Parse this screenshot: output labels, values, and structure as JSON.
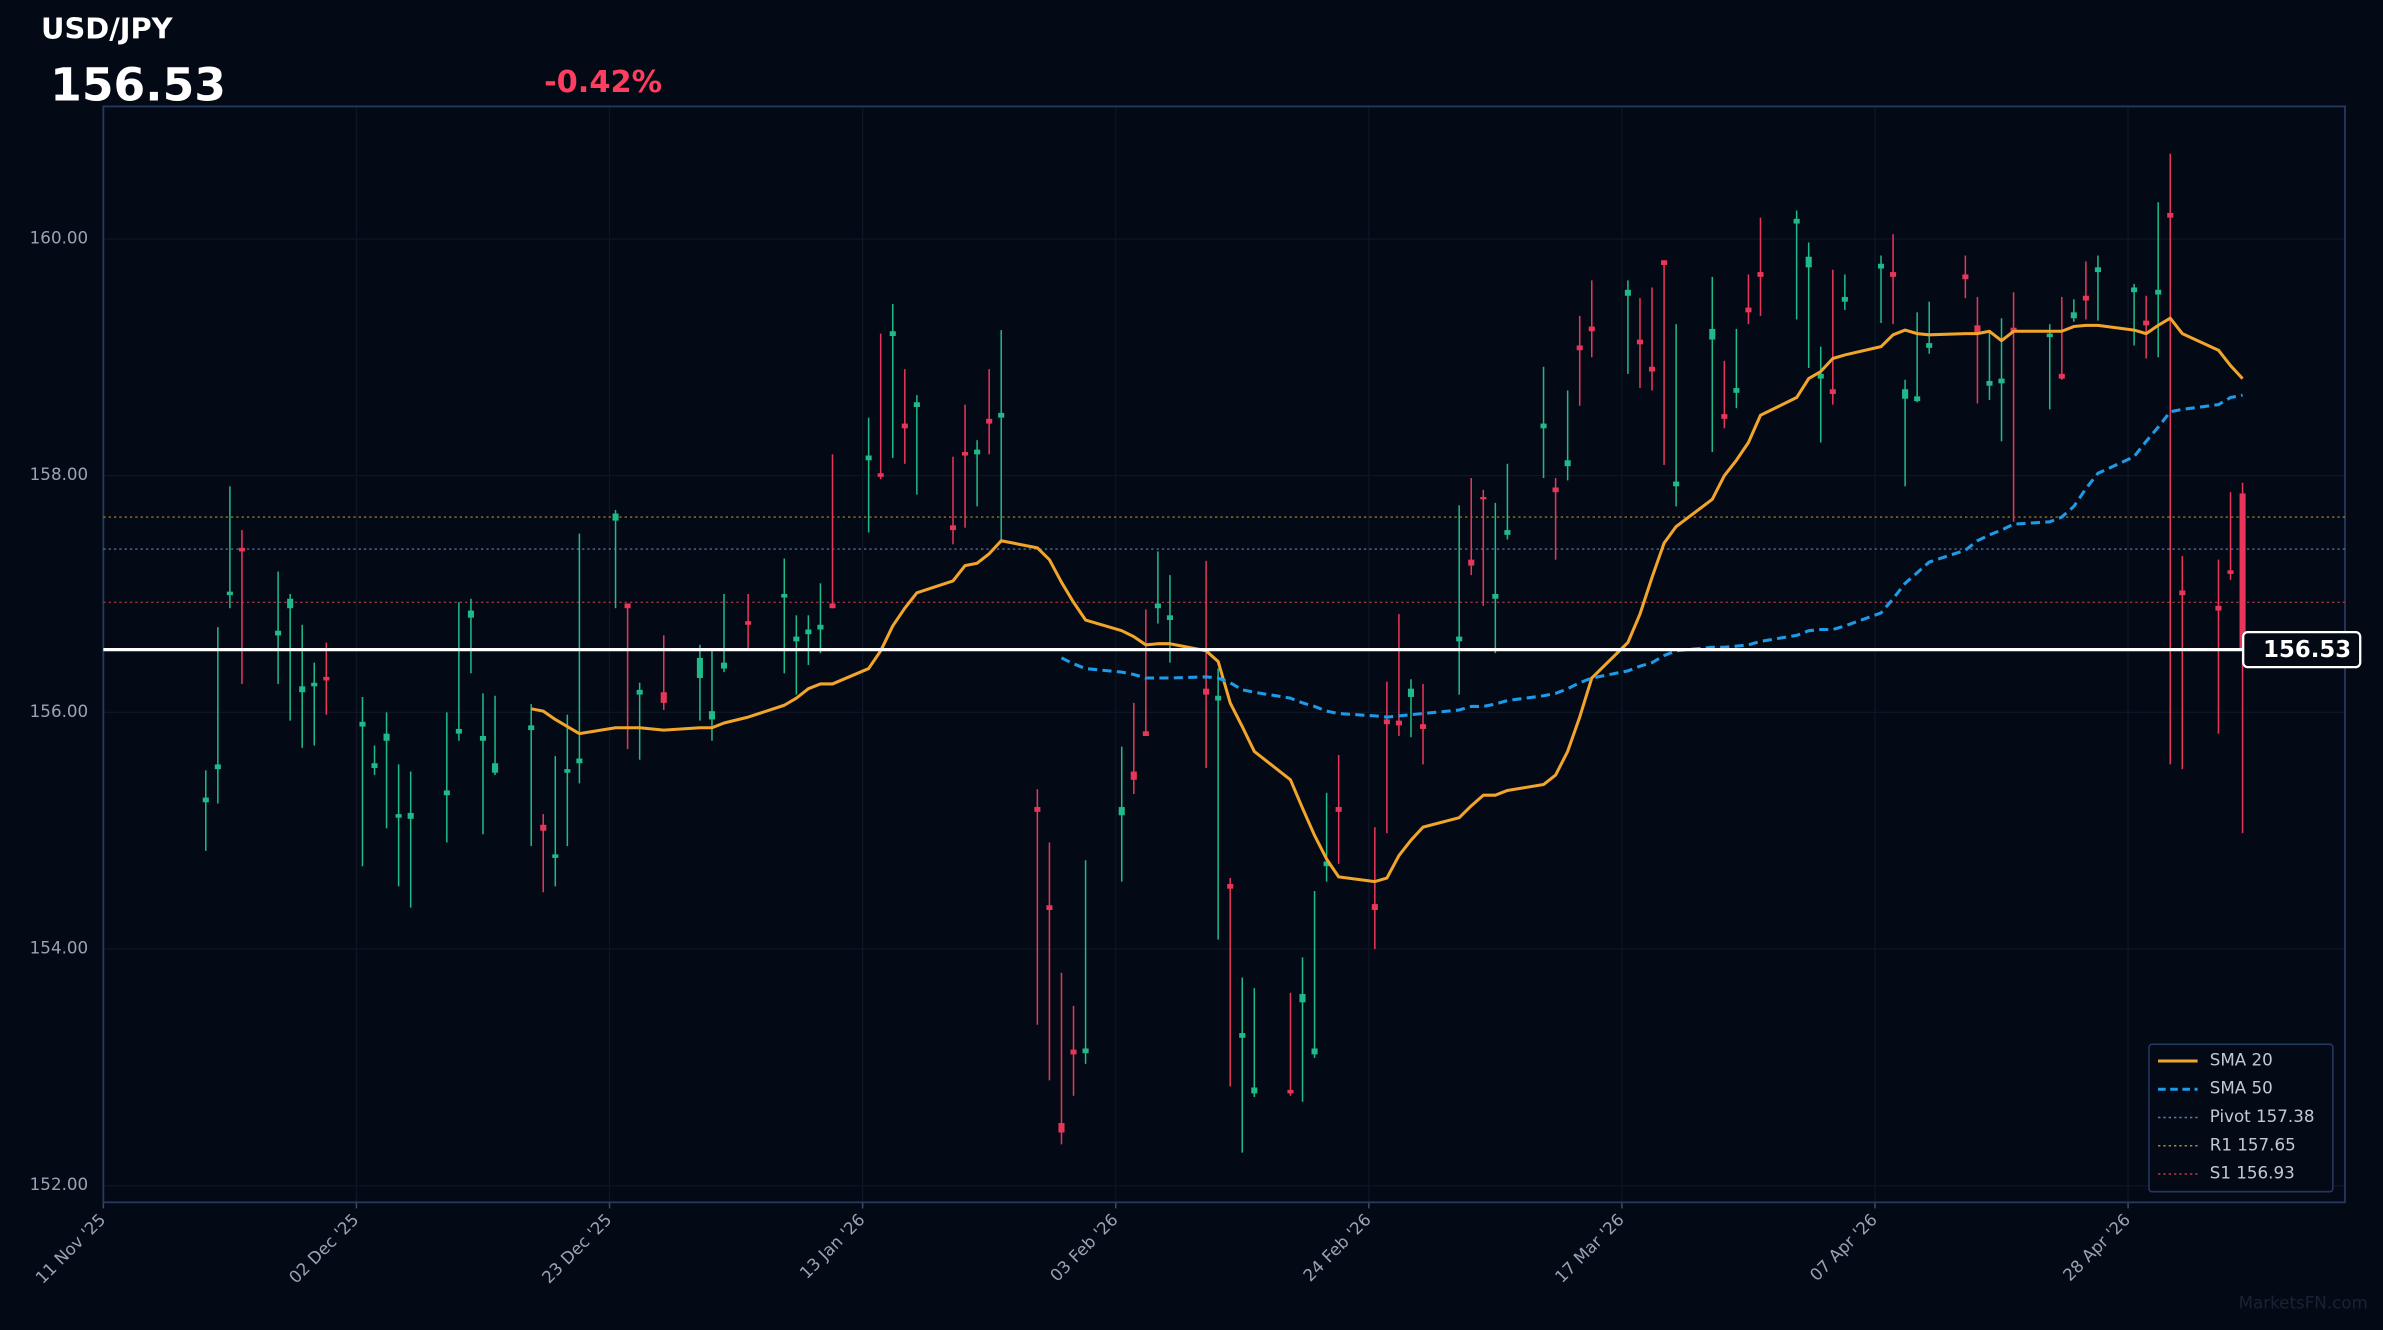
{
  "header": {
    "symbol": "USD/JPY",
    "change": "-0.42%"
  },
  "chart_data": {
    "type": "candlestick",
    "last_price": 156.53,
    "watermark": "MarketsFN.com",
    "colors": {
      "up": "#1fb98a",
      "down": "#e8365a",
      "last_price": "#ffffff",
      "change": "#ff3d5e"
    },
    "grid": true,
    "legend": "lower right",
    "xlim": [
      "2025-11-11",
      "2026-05-16"
    ],
    "xticks": [
      {
        "value": "2025-11-11",
        "label": "11 Nov '25"
      },
      {
        "value": "2025-12-02",
        "label": "02 Dec '25"
      },
      {
        "value": "2025-12-23",
        "label": "23 Dec '25"
      },
      {
        "value": "2026-01-13",
        "label": "13 Jan '26"
      },
      {
        "value": "2026-02-03",
        "label": "03 Feb '26"
      },
      {
        "value": "2026-02-24",
        "label": "24 Feb '26"
      },
      {
        "value": "2026-03-17",
        "label": "17 Mar '26"
      },
      {
        "value": "2026-04-07",
        "label": "07 Apr '26"
      },
      {
        "value": "2026-04-28",
        "label": "28 Apr '26"
      }
    ],
    "ylim": [
      151.86,
      161.12
    ],
    "yticks": [
      {
        "value": 152,
        "label": "152.00"
      },
      {
        "value": 154,
        "label": "154.00"
      },
      {
        "value": 156,
        "label": "156.00"
      },
      {
        "value": 158,
        "label": "158.00"
      },
      {
        "value": 160,
        "label": "160.00"
      }
    ],
    "x": [
      "2025-11-19",
      "2025-11-20",
      "2025-11-21",
      "2025-11-22",
      "2025-11-25",
      "2025-11-26",
      "2025-11-27",
      "2025-11-28",
      "2025-11-29",
      "2025-12-02",
      "2025-12-03",
      "2025-12-04",
      "2025-12-05",
      "2025-12-06",
      "2025-12-09",
      "2025-12-10",
      "2025-12-11",
      "2025-12-12",
      "2025-12-13",
      "2025-12-16",
      "2025-12-17",
      "2025-12-18",
      "2025-12-19",
      "2025-12-20",
      "2025-12-23",
      "2025-12-24",
      "2025-12-25",
      "2025-12-27",
      "2025-12-30",
      "2025-12-31",
      "2026-01-01",
      "2026-01-03",
      "2026-01-06",
      "2026-01-07",
      "2026-01-08",
      "2026-01-09",
      "2026-01-10",
      "2026-01-13",
      "2026-01-14",
      "2026-01-15",
      "2026-01-16",
      "2026-01-17",
      "2026-01-20",
      "2026-01-21",
      "2026-01-22",
      "2026-01-23",
      "2026-01-24",
      "2026-01-27",
      "2026-01-28",
      "2026-01-29",
      "2026-01-30",
      "2026-01-31",
      "2026-02-03",
      "2026-02-04",
      "2026-02-05",
      "2026-02-06",
      "2026-02-07",
      "2026-02-10",
      "2026-02-11",
      "2026-02-12",
      "2026-02-13",
      "2026-02-14",
      "2026-02-17",
      "2026-02-18",
      "2026-02-19",
      "2026-02-20",
      "2026-02-21",
      "2026-02-24",
      "2026-02-25",
      "2026-02-26",
      "2026-02-27",
      "2026-02-28",
      "2026-03-03",
      "2026-03-04",
      "2026-03-05",
      "2026-03-06",
      "2026-03-07",
      "2026-03-10",
      "2026-03-11",
      "2026-03-12",
      "2026-03-13",
      "2026-03-14",
      "2026-03-17",
      "2026-03-18",
      "2026-03-19",
      "2026-03-20",
      "2026-03-21",
      "2026-03-24",
      "2026-03-25",
      "2026-03-26",
      "2026-03-27",
      "2026-03-28",
      "2026-03-31",
      "2026-04-01",
      "2026-04-02",
      "2026-04-03",
      "2026-04-04",
      "2026-04-07",
      "2026-04-08",
      "2026-04-09",
      "2026-04-10",
      "2026-04-11",
      "2026-04-14",
      "2026-04-15",
      "2026-04-16",
      "2026-04-17",
      "2026-04-18",
      "2026-04-21",
      "2026-04-22",
      "2026-04-23",
      "2026-04-24",
      "2026-04-25",
      "2026-04-28",
      "2026-04-29",
      "2026-04-30",
      "2026-05-01",
      "2026-05-02",
      "2026-05-05",
      "2026-05-06",
      "2026-05-07"
    ],
    "open": [
      155.24,
      155.52,
      156.99,
      157.39,
      156.65,
      156.88,
      156.17,
      156.22,
      156.3,
      155.88,
      155.53,
      155.76,
      155.11,
      155.1,
      155.3,
      155.82,
      156.8,
      155.76,
      155.49,
      155.85,
      155.05,
      154.77,
      155.49,
      155.57,
      157.62,
      156.92,
      156.15,
      156.17,
      156.29,
      155.94,
      156.37,
      156.77,
      156.97,
      156.6,
      156.66,
      156.7,
      156.92,
      158.13,
      158.02,
      159.18,
      158.44,
      158.58,
      157.58,
      158.2,
      158.18,
      158.48,
      158.49,
      155.2,
      154.37,
      152.53,
      153.15,
      153.12,
      155.13,
      155.5,
      155.84,
      156.88,
      156.78,
      156.2,
      156.1,
      154.55,
      153.25,
      152.78,
      152.81,
      153.55,
      153.11,
      154.7,
      155.2,
      154.38,
      155.94,
      155.93,
      156.13,
      155.9,
      156.6,
      157.29,
      157.82,
      156.96,
      157.5,
      158.4,
      157.9,
      158.08,
      159.1,
      159.26,
      159.52,
      159.15,
      158.92,
      159.82,
      157.91,
      159.15,
      158.52,
      158.7,
      159.42,
      159.72,
      160.13,
      159.76,
      158.82,
      158.73,
      159.47,
      159.75,
      159.72,
      158.65,
      158.63,
      159.08,
      159.7,
      159.27,
      158.76,
      158.78,
      159.25,
      159.17,
      158.86,
      159.33,
      159.52,
      159.72,
      159.55,
      159.31,
      159.53,
      160.22,
      157.03,
      156.9,
      157.2,
      157.85
    ],
    "high": [
      155.51,
      156.72,
      157.91,
      157.54,
      157.19,
      157.0,
      156.74,
      156.42,
      156.59,
      156.13,
      155.72,
      156.0,
      155.56,
      155.5,
      156.0,
      156.93,
      156.96,
      156.16,
      156.14,
      156.07,
      155.14,
      155.63,
      155.98,
      157.51,
      157.71,
      156.92,
      156.25,
      156.65,
      156.57,
      156.53,
      157.0,
      157.0,
      157.3,
      156.82,
      156.82,
      157.09,
      158.18,
      158.49,
      159.2,
      159.45,
      158.9,
      158.68,
      158.16,
      158.6,
      158.3,
      158.9,
      159.23,
      155.35,
      154.9,
      153.8,
      153.52,
      154.75,
      155.71,
      156.08,
      156.87,
      157.36,
      157.16,
      157.28,
      156.37,
      154.6,
      153.76,
      153.67,
      153.63,
      153.93,
      154.49,
      155.32,
      155.64,
      155.03,
      156.26,
      156.83,
      156.28,
      156.24,
      157.75,
      157.98,
      157.88,
      157.77,
      158.1,
      158.92,
      157.98,
      158.72,
      159.35,
      159.65,
      159.65,
      159.5,
      159.59,
      159.82,
      159.28,
      159.68,
      158.97,
      159.24,
      159.7,
      160.18,
      160.24,
      159.97,
      159.09,
      159.74,
      159.7,
      159.86,
      160.04,
      158.81,
      159.38,
      159.47,
      159.86,
      159.51,
      159.22,
      159.33,
      159.55,
      159.28,
      159.51,
      159.49,
      159.81,
      159.86,
      159.62,
      159.52,
      160.31,
      160.72,
      157.32,
      157.29,
      157.86,
      157.94
    ],
    "low": [
      154.83,
      155.23,
      156.88,
      156.24,
      156.24,
      155.93,
      155.7,
      155.72,
      155.98,
      154.7,
      155.47,
      155.02,
      154.53,
      154.35,
      154.9,
      155.76,
      156.33,
      154.97,
      155.47,
      154.87,
      154.48,
      154.53,
      154.87,
      155.4,
      156.88,
      155.69,
      155.6,
      156.02,
      155.93,
      155.76,
      156.34,
      156.53,
      156.33,
      156.15,
      156.4,
      156.5,
      156.88,
      157.52,
      157.97,
      158.15,
      158.1,
      157.84,
      157.42,
      157.56,
      157.74,
      158.18,
      157.43,
      153.36,
      152.89,
      152.35,
      152.76,
      153.03,
      154.57,
      155.31,
      155.8,
      156.75,
      156.42,
      155.53,
      154.08,
      152.84,
      152.28,
      152.75,
      152.76,
      152.71,
      153.08,
      154.57,
      154.72,
      154.0,
      154.98,
      155.8,
      155.79,
      155.56,
      156.15,
      157.16,
      156.9,
      156.5,
      157.46,
      157.98,
      157.29,
      157.96,
      158.59,
      159.0,
      158.86,
      158.74,
      158.72,
      158.09,
      157.74,
      158.2,
      158.4,
      158.57,
      159.28,
      159.35,
      159.32,
      158.91,
      158.28,
      158.6,
      159.4,
      159.29,
      159.28,
      157.91,
      158.62,
      159.03,
      159.5,
      158.61,
      158.64,
      158.29,
      157.61,
      158.56,
      158.81,
      159.3,
      159.32,
      159.31,
      159.1,
      158.99,
      159.0,
      155.56,
      155.52,
      155.82,
      157.12,
      154.98
    ],
    "close": [
      155.28,
      155.56,
      157.02,
      157.36,
      156.69,
      156.96,
      156.22,
      156.25,
      156.27,
      155.92,
      155.57,
      155.82,
      155.14,
      155.15,
      155.34,
      155.86,
      156.86,
      155.8,
      155.57,
      155.89,
      155.0,
      154.8,
      155.52,
      155.61,
      157.68,
      156.88,
      156.19,
      156.08,
      156.46,
      156.01,
      156.42,
      156.74,
      157.0,
      156.64,
      156.7,
      156.74,
      156.88,
      158.17,
      157.99,
      159.22,
      158.4,
      158.62,
      157.54,
      158.17,
      158.22,
      158.44,
      158.53,
      155.16,
      154.33,
      152.45,
      153.11,
      153.16,
      155.2,
      155.43,
      155.8,
      156.92,
      156.82,
      156.15,
      156.14,
      154.51,
      153.29,
      152.83,
      152.78,
      153.62,
      153.16,
      154.74,
      155.16,
      154.33,
      155.9,
      155.89,
      156.2,
      155.86,
      156.64,
      157.24,
      157.8,
      157.0,
      157.54,
      158.44,
      157.86,
      158.13,
      159.06,
      159.22,
      159.57,
      159.11,
      158.88,
      159.78,
      157.95,
      159.24,
      158.48,
      158.74,
      159.38,
      159.68,
      160.17,
      159.85,
      158.86,
      158.69,
      159.51,
      159.79,
      159.68,
      158.73,
      158.67,
      159.12,
      159.66,
      159.21,
      158.8,
      158.82,
      159.21,
      159.2,
      158.82,
      159.38,
      159.48,
      159.76,
      159.59,
      159.27,
      159.57,
      160.18,
      156.99,
      156.86,
      157.17,
      156.53
    ],
    "series": [
      {
        "name": "SMA 20",
        "color": "#f2a52b",
        "style": "solid",
        "values": [
          null,
          null,
          null,
          null,
          null,
          null,
          null,
          null,
          null,
          null,
          null,
          null,
          null,
          null,
          null,
          null,
          null,
          null,
          null,
          156.03,
          156.01,
          155.94,
          155.88,
          155.82,
          155.87,
          155.87,
          155.87,
          155.85,
          155.87,
          155.87,
          155.91,
          155.96,
          156.06,
          156.12,
          156.2,
          156.24,
          156.24,
          156.37,
          156.52,
          156.73,
          156.88,
          157.01,
          157.11,
          157.24,
          157.26,
          157.34,
          157.45,
          157.39,
          157.29,
          157.1,
          156.93,
          156.78,
          156.69,
          156.64,
          156.57,
          156.58,
          156.58,
          156.52,
          156.43,
          156.08,
          155.88,
          155.67,
          155.43,
          155.19,
          154.96,
          154.76,
          154.61,
          154.57,
          154.6,
          154.79,
          154.92,
          155.03,
          155.11,
          155.21,
          155.3,
          155.3,
          155.34,
          155.39,
          155.47,
          155.67,
          155.96,
          156.29,
          156.59,
          156.83,
          157.14,
          157.43,
          157.57,
          157.8,
          158.0,
          158.13,
          158.28,
          158.51,
          158.66,
          158.82,
          158.88,
          158.99,
          159.02,
          159.09,
          159.19,
          159.23,
          159.2,
          159.19,
          159.2,
          159.2,
          159.22,
          159.14,
          159.22,
          159.22,
          159.22,
          159.26,
          159.27,
          159.27,
          159.23,
          159.2,
          159.27,
          159.33,
          159.2,
          159.06,
          158.93,
          158.82
        ]
      },
      {
        "name": "SMA 50",
        "color": "#1e9be8",
        "style": "dashed",
        "values": [
          null,
          null,
          null,
          null,
          null,
          null,
          null,
          null,
          null,
          null,
          null,
          null,
          null,
          null,
          null,
          null,
          null,
          null,
          null,
          null,
          null,
          null,
          null,
          null,
          null,
          null,
          null,
          null,
          null,
          null,
          null,
          null,
          null,
          null,
          null,
          null,
          null,
          null,
          null,
          null,
          null,
          null,
          null,
          null,
          null,
          null,
          null,
          null,
          null,
          156.46,
          156.41,
          156.37,
          156.34,
          156.32,
          156.29,
          156.29,
          156.29,
          156.3,
          156.29,
          156.25,
          156.19,
          156.17,
          156.12,
          156.08,
          156.05,
          156.01,
          155.99,
          155.97,
          155.96,
          155.97,
          155.98,
          155.99,
          156.02,
          156.05,
          156.05,
          156.07,
          156.1,
          156.14,
          156.16,
          156.2,
          156.25,
          156.29,
          156.35,
          156.39,
          156.42,
          156.48,
          156.52,
          156.55,
          156.55,
          156.56,
          156.57,
          156.6,
          156.65,
          156.69,
          156.7,
          156.7,
          156.73,
          156.84,
          156.96,
          157.09,
          157.18,
          157.27,
          157.37,
          157.45,
          157.5,
          157.54,
          157.59,
          157.61,
          157.65,
          157.74,
          157.89,
          158.02,
          158.16,
          158.29,
          158.41,
          158.54,
          158.56,
          158.6,
          158.66,
          158.68
        ]
      }
    ],
    "levels": [
      {
        "name": "Pivot 157.38",
        "value": 157.38,
        "color": "#5d7fb8"
      },
      {
        "name": "R1 157.65",
        "value": 157.65,
        "color": "#b8862b"
      },
      {
        "name": "S1 156.93",
        "value": 156.93,
        "color": "#b83a44"
      }
    ]
  }
}
